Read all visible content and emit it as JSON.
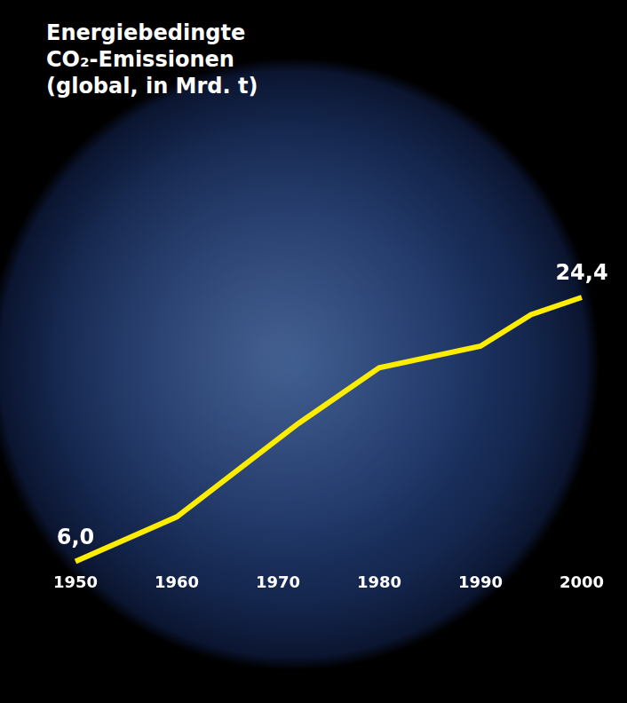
{
  "chart_data": {
    "type": "line",
    "title": [
      "Energiebedingte",
      "CO₂-Emissionen",
      "(global, in Mrd. t)"
    ],
    "x": [
      1950,
      1960,
      1972,
      1980,
      1990,
      1995,
      2000
    ],
    "values": [
      6.0,
      9.1,
      15.6,
      19.5,
      21.0,
      23.2,
      24.4
    ],
    "value_labels": [
      "6,0",
      null,
      null,
      null,
      null,
      null,
      "24,4"
    ],
    "data_labels": true,
    "color": "#ffed00",
    "marker": "none",
    "line_style": "solid",
    "xlim": [
      1950,
      2000
    ],
    "xticks": [
      1950,
      1960,
      1970,
      1980,
      1990,
      2000
    ],
    "grid": false,
    "tick_labels": "x"
  }
}
